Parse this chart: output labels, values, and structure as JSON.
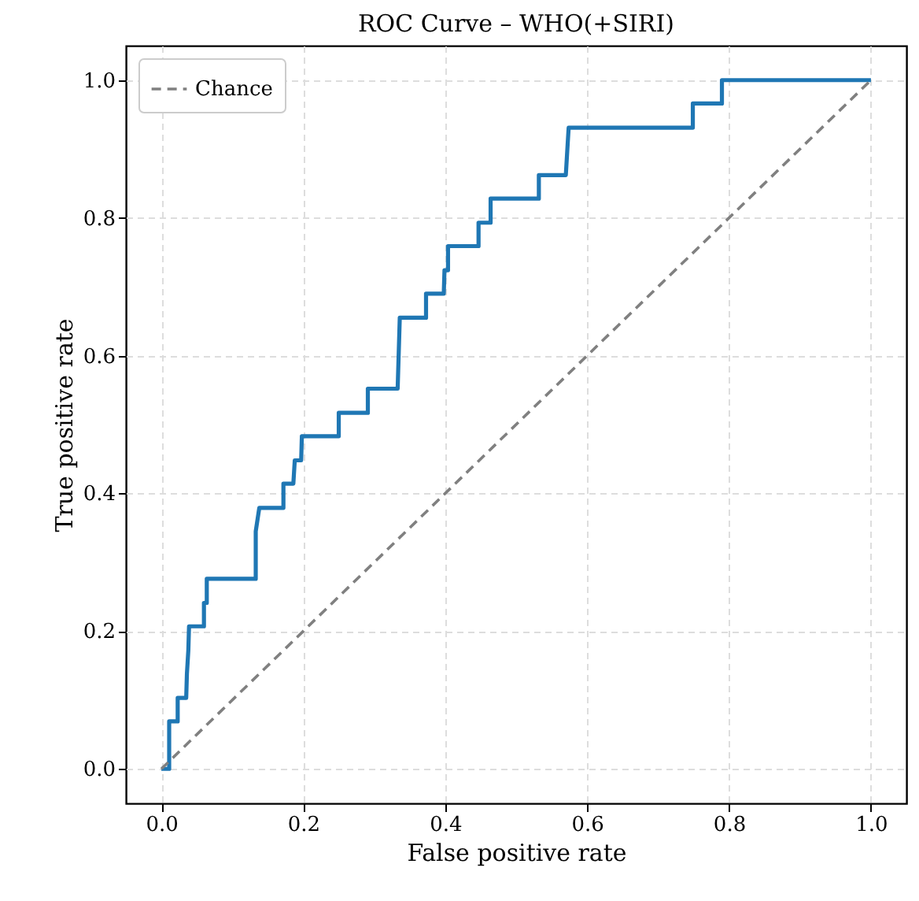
{
  "chart_data": {
    "type": "line",
    "title": "ROC Curve – WHO(+SIRI)",
    "xlabel": "False positive rate",
    "ylabel": "True positive rate",
    "xlim": [
      -0.05,
      1.05
    ],
    "ylim": [
      -0.05,
      1.05
    ],
    "xticks": [
      {
        "value": 0,
        "label": "0.0"
      },
      {
        "value": 0.2,
        "label": "0.2"
      },
      {
        "value": 0.4,
        "label": "0.4"
      },
      {
        "value": 0.6,
        "label": "0.6"
      },
      {
        "value": 0.8,
        "label": "0.8"
      },
      {
        "value": 1,
        "label": "1.0"
      }
    ],
    "yticks": [
      {
        "value": 0,
        "label": "0.0"
      },
      {
        "value": 0.2,
        "label": "0.2"
      },
      {
        "value": 0.4,
        "label": "0.4"
      },
      {
        "value": 0.6,
        "label": "0.6"
      },
      {
        "value": 0.8,
        "label": "0.8"
      },
      {
        "value": 1,
        "label": "1.0"
      }
    ],
    "grid": true,
    "legend": "top left",
    "marker": "none",
    "series": [
      {
        "color": "#1f77b4",
        "line_style": "solid",
        "x": [
          0,
          0.011,
          0.011,
          0.023,
          0.023,
          0.035,
          0.036,
          0.038,
          0.039,
          0.06,
          0.06,
          0.064,
          0.064,
          0.133,
          0.133,
          0.138,
          0.172,
          0.172,
          0.186,
          0.188,
          0.197,
          0.198,
          0.25,
          0.25,
          0.291,
          0.291,
          0.333,
          0.336,
          0.373,
          0.373,
          0.398,
          0.399,
          0.404,
          0.404,
          0.447,
          0.447,
          0.464,
          0.464,
          0.532,
          0.532,
          0.57,
          0.572,
          0.574,
          0.749,
          0.749,
          0.79,
          0.79,
          1
        ],
        "values": [
          0,
          0,
          0.069,
          0.069,
          0.103,
          0.103,
          0.138,
          0.172,
          0.207,
          0.207,
          0.241,
          0.241,
          0.276,
          0.276,
          0.345,
          0.379,
          0.379,
          0.414,
          0.414,
          0.448,
          0.448,
          0.483,
          0.483,
          0.517,
          0.517,
          0.552,
          0.552,
          0.655,
          0.655,
          0.69,
          0.69,
          0.724,
          0.724,
          0.759,
          0.759,
          0.793,
          0.793,
          0.828,
          0.828,
          0.862,
          0.862,
          0.897,
          0.931,
          0.931,
          0.966,
          0.966,
          1,
          1
        ]
      },
      {
        "name": "Chance",
        "color": "#808080",
        "line_style": "dashed",
        "x": [
          0,
          1
        ],
        "values": [
          0,
          1
        ]
      }
    ]
  }
}
